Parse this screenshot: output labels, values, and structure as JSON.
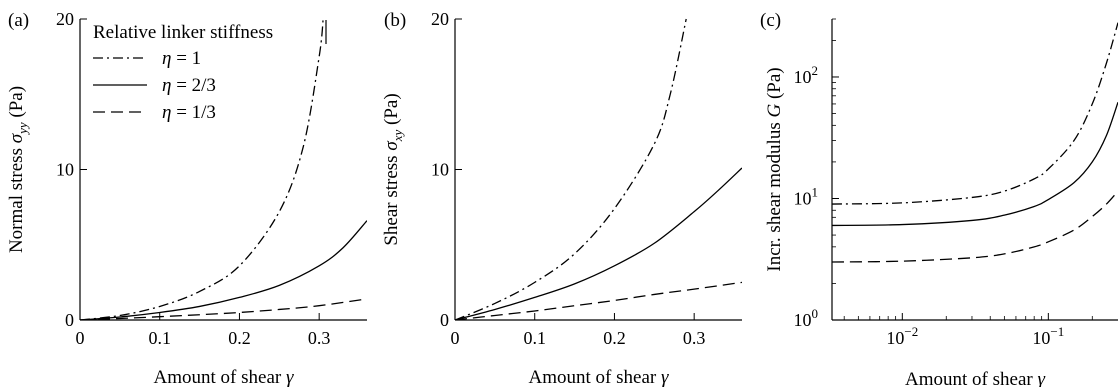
{
  "chart_data": [
    {
      "type": "line",
      "panel_label": "(a)",
      "ylabel": "Normal stress σyy (Pa)",
      "ylabel_main": "Normal stress ",
      "ylabel_sym": "σ",
      "ylabel_sub": "yy",
      "ylabel_unit": " (Pa)",
      "xlabel_main": "Amount of shear ",
      "xlabel_sym": "γ",
      "xlim": [
        0,
        0.36
      ],
      "ylim": [
        0,
        20
      ],
      "xticks": [
        "0",
        "0.1",
        "0.2",
        "0.3"
      ],
      "xtick_values": [
        0,
        0.1,
        0.2,
        0.3
      ],
      "yticks": [
        "0",
        "10",
        "20"
      ],
      "ytick_values": [
        0,
        10,
        20
      ],
      "legend": {
        "title": "Relative linker stiffness",
        "placement": "top-left",
        "entries": [
          {
            "sym": "η",
            "rest": " = 1",
            "style": "dashdot"
          },
          {
            "sym": "η",
            "rest": " = 2/3",
            "style": "solid"
          },
          {
            "sym": "η",
            "rest": " = 1/3",
            "style": "dashed"
          }
        ]
      },
      "series": [
        {
          "style": "dashdot",
          "x": [
            0,
            0.05,
            0.1,
            0.15,
            0.2,
            0.25,
            0.28,
            0.3,
            0.305
          ],
          "y": [
            0,
            0.3,
            0.9,
            1.9,
            3.6,
            7.2,
            11.5,
            17.5,
            20
          ]
        },
        {
          "style": "solid",
          "x": [
            0,
            0.05,
            0.1,
            0.15,
            0.2,
            0.25,
            0.3,
            0.33,
            0.36
          ],
          "y": [
            0,
            0.2,
            0.5,
            0.9,
            1.5,
            2.3,
            3.6,
            4.8,
            6.6
          ]
        },
        {
          "style": "dashed",
          "x": [
            0,
            0.05,
            0.1,
            0.15,
            0.2,
            0.25,
            0.3,
            0.36
          ],
          "y": [
            0,
            0.1,
            0.22,
            0.35,
            0.5,
            0.7,
            0.95,
            1.4
          ]
        }
      ]
    },
    {
      "type": "line",
      "panel_label": "(b)",
      "ylabel": "Shear stress σxy (Pa)",
      "ylabel_main": "Shear stress ",
      "ylabel_sym": "σ",
      "ylabel_sub": "xy",
      "ylabel_unit": " (Pa)",
      "xlabel_main": "Amount of shear ",
      "xlabel_sym": "γ",
      "xlim": [
        0,
        0.36
      ],
      "ylim": [
        0,
        20
      ],
      "xticks": [
        "0",
        "0.1",
        "0.2",
        "0.3"
      ],
      "xtick_values": [
        0,
        0.1,
        0.2,
        0.3
      ],
      "yticks": [
        "0",
        "10",
        "20"
      ],
      "ytick_values": [
        0,
        10,
        20
      ],
      "series": [
        {
          "style": "dashdot",
          "x": [
            0,
            0.05,
            0.1,
            0.15,
            0.2,
            0.25,
            0.27,
            0.29
          ],
          "y": [
            0,
            1.1,
            2.5,
            4.4,
            7.4,
            11.7,
            15,
            20
          ]
        },
        {
          "style": "solid",
          "x": [
            0,
            0.05,
            0.1,
            0.15,
            0.2,
            0.25,
            0.3,
            0.33,
            0.36
          ],
          "y": [
            0,
            0.7,
            1.5,
            2.4,
            3.6,
            5.1,
            7.2,
            8.6,
            10.1
          ]
        },
        {
          "style": "dashed",
          "x": [
            0,
            0.05,
            0.1,
            0.15,
            0.2,
            0.25,
            0.3,
            0.36
          ],
          "y": [
            0,
            0.3,
            0.6,
            0.95,
            1.3,
            1.7,
            2.05,
            2.5
          ]
        }
      ]
    },
    {
      "type": "line",
      "panel_label": "(c)",
      "ylabel": "Incr. shear modulus G (Pa)",
      "ylabel_main": "Incr. shear modulus ",
      "ylabel_sym": "G",
      "ylabel_sub": "",
      "ylabel_unit": " (Pa)",
      "xlabel_main": "Amount of shear ",
      "xlabel_sym": "γ",
      "xscale": "log",
      "yscale": "log",
      "xlim": [
        0.0033,
        0.3
      ],
      "ylim": [
        1,
        300
      ],
      "xticks": [
        "10",
        "10"
      ],
      "xtick_exps": [
        "−2",
        "−1"
      ],
      "xtick_values": [
        0.01,
        0.1
      ],
      "yticks": [
        "10",
        "10",
        "10"
      ],
      "ytick_exps": [
        "0",
        "1",
        "2"
      ],
      "ytick_values": [
        1,
        10,
        100
      ],
      "series": [
        {
          "style": "dashdot",
          "x": [
            0.0033,
            0.01,
            0.03,
            0.05,
            0.08,
            0.1,
            0.15,
            0.2,
            0.25,
            0.3
          ],
          "y": [
            9,
            9.2,
            10.2,
            11.5,
            14.5,
            17.5,
            30,
            60,
            130,
            280
          ]
        },
        {
          "style": "solid",
          "x": [
            0.0033,
            0.01,
            0.03,
            0.05,
            0.08,
            0.1,
            0.15,
            0.2,
            0.25,
            0.3
          ],
          "y": [
            6,
            6.1,
            6.6,
            7.3,
            8.6,
            9.8,
            13.5,
            20,
            33,
            62
          ]
        },
        {
          "style": "dashed",
          "x": [
            0.0033,
            0.01,
            0.03,
            0.05,
            0.08,
            0.1,
            0.15,
            0.2,
            0.25,
            0.3
          ],
          "y": [
            3,
            3.05,
            3.25,
            3.5,
            4,
            4.4,
            5.5,
            7.1,
            9,
            11.5
          ]
        }
      ]
    }
  ]
}
